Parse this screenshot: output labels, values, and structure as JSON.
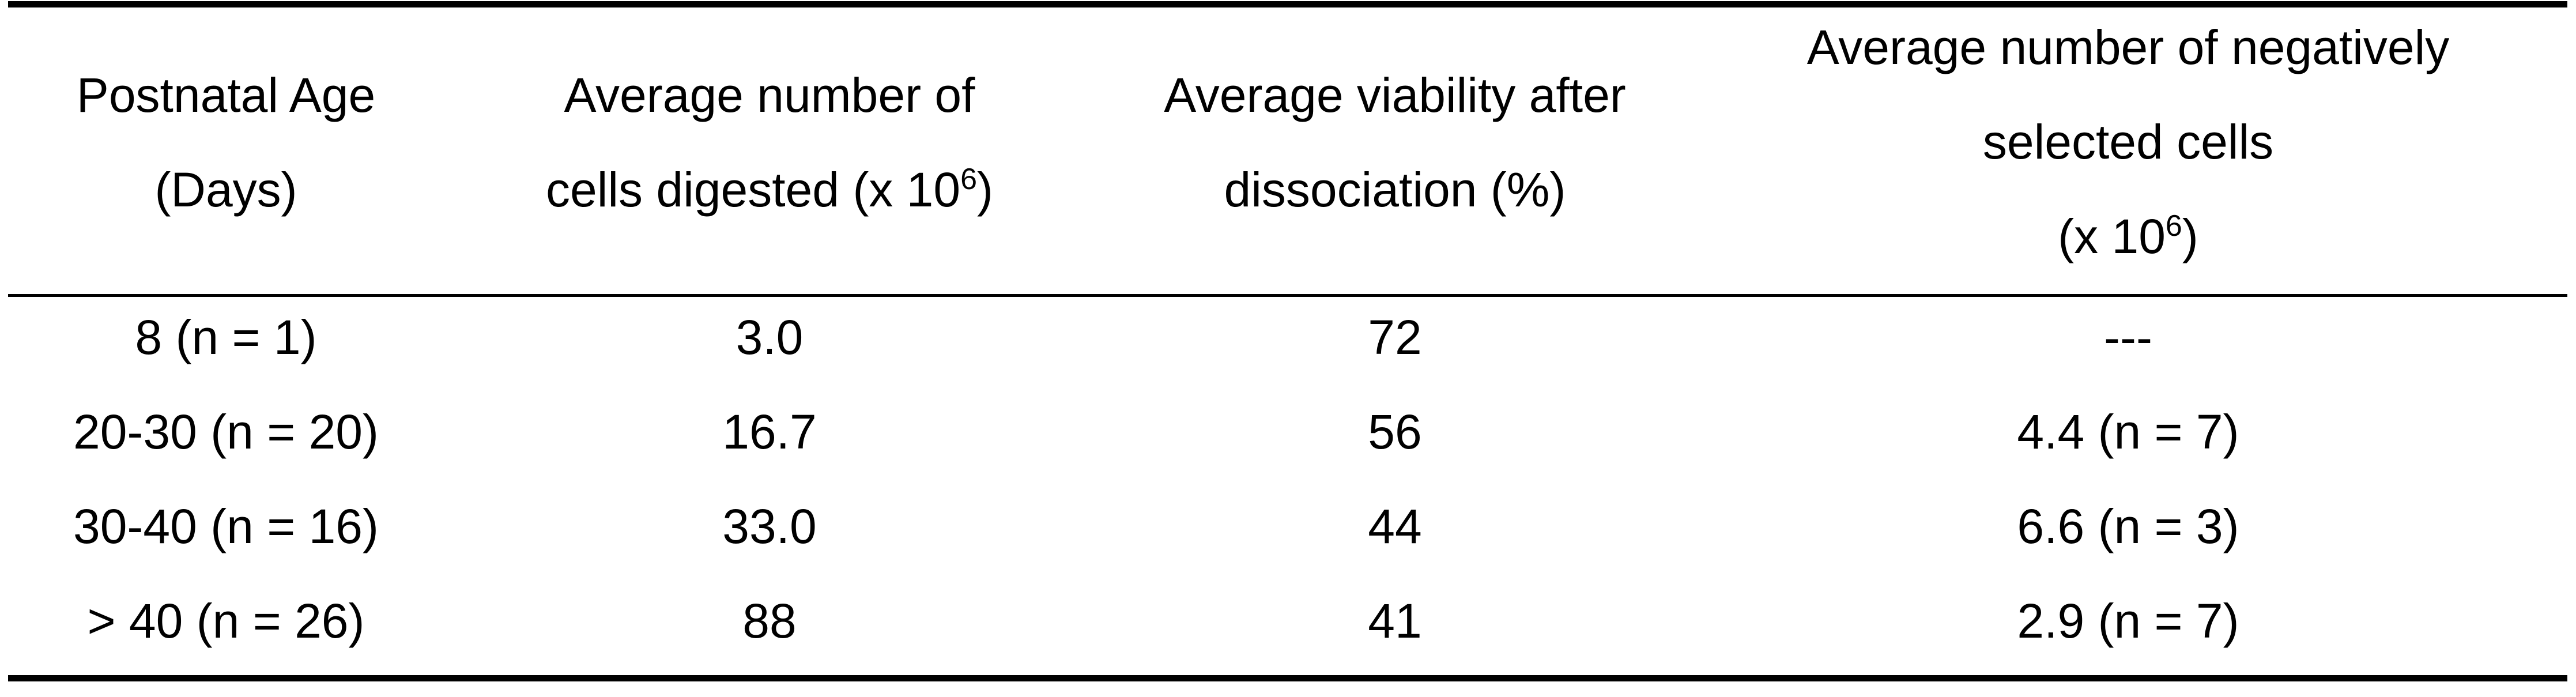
{
  "table": {
    "headers": [
      {
        "lines": [
          "Postnatal Age",
          "(Days)"
        ]
      },
      {
        "line1": "Average number of",
        "line2_prefix": "cells digested (x 10",
        "line2_sup": "6",
        "line2_suffix": ")"
      },
      {
        "lines": [
          "Average viability after",
          "dissociation (%)"
        ]
      },
      {
        "line1": "Average number of negatively",
        "line2": "selected cells",
        "line3_prefix": "(x 10",
        "line3_sup": "6",
        "line3_suffix": ")"
      }
    ],
    "rows": [
      [
        "8 (n = 1)",
        "3.0",
        "72",
        "---"
      ],
      [
        "20-30 (n = 20)",
        "16.7",
        "56",
        "4.4 (n = 7)"
      ],
      [
        "30-40 (n = 16)",
        "33.0",
        "44",
        "6.6 (n = 3)"
      ],
      [
        "> 40 (n = 26)",
        "88",
        "41",
        "2.9 (n = 7)"
      ]
    ]
  }
}
